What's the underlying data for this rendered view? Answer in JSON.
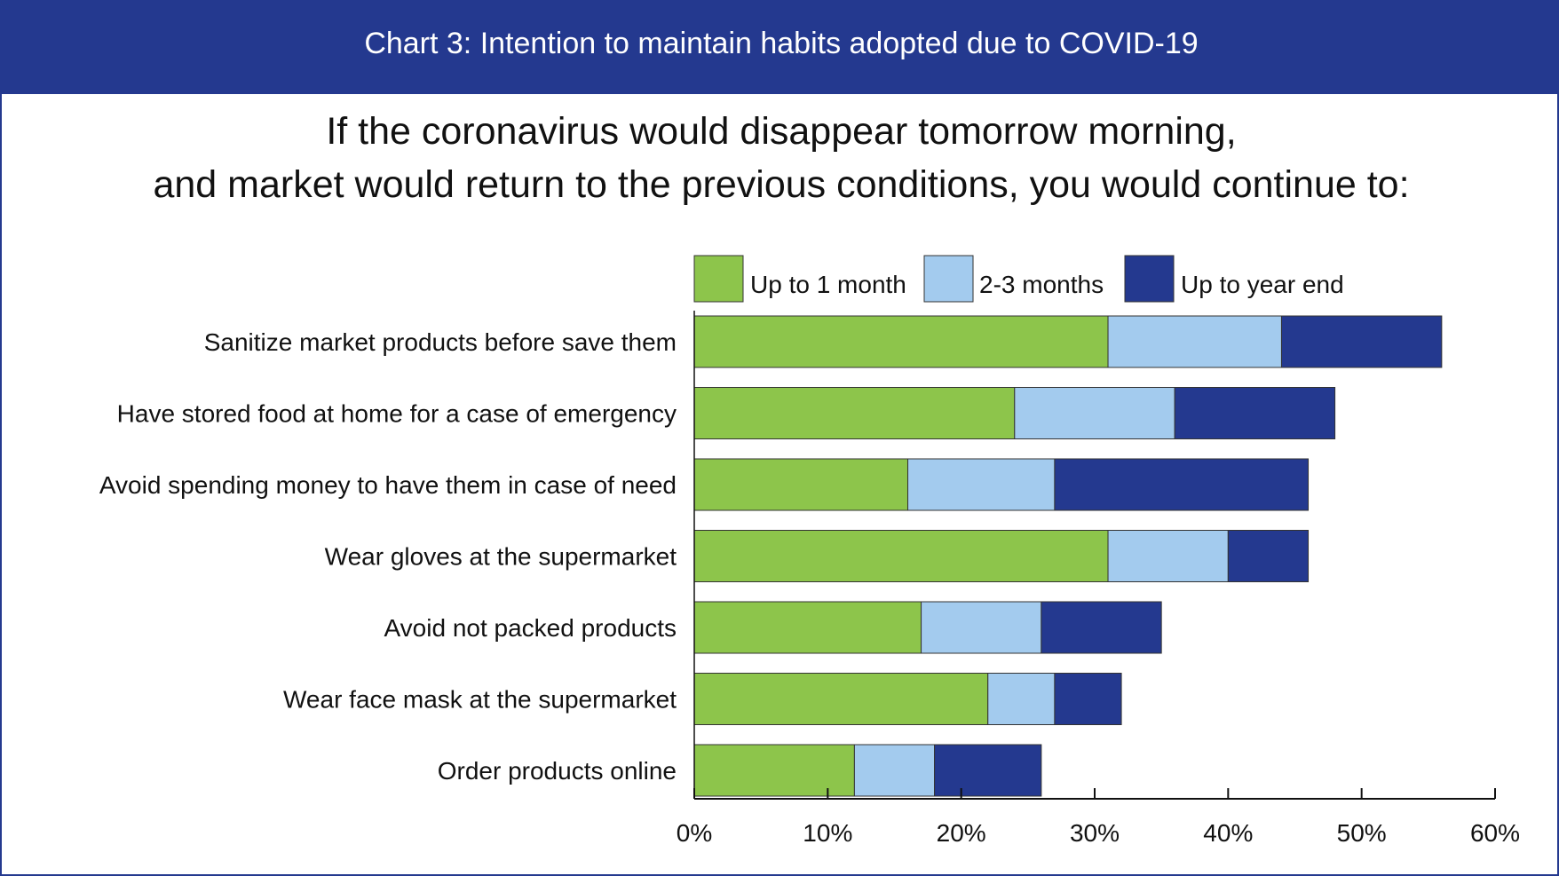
{
  "header": {
    "title": "Chart 3: Intention to maintain habits adopted due to COVID-19"
  },
  "question": {
    "line1": "If the coronavirus would disappear tomorrow morning,",
    "line2": "and market would return to the previous conditions, you would continue to:"
  },
  "chart_data": {
    "type": "bar",
    "orientation": "horizontal",
    "stacked": true,
    "categories": [
      "Sanitize market products before save them",
      "Have stored food at home for a case of emergency",
      "Avoid spending money to have them in case of need",
      "Wear gloves at the supermarket",
      "Avoid not packed products",
      "Wear face mask at the supermarket",
      "Order products online"
    ],
    "series": [
      {
        "name": "Up to 1 month",
        "color": "#8dc54b",
        "values": [
          31,
          24,
          16,
          31,
          17,
          22,
          12
        ]
      },
      {
        "name": "2-3 months",
        "color": "#a3cbee",
        "values": [
          13,
          12,
          11,
          9,
          9,
          5,
          6
        ]
      },
      {
        "name": "Up to year end",
        "color": "#24398f",
        "values": [
          12,
          12,
          19,
          6,
          9,
          5,
          8
        ]
      }
    ],
    "xlim": [
      0,
      60
    ],
    "xticks": [
      "0%",
      "10%",
      "20%",
      "30%",
      "40%",
      "50%",
      "60%"
    ],
    "tick_values": [
      0,
      10,
      20,
      30,
      40,
      50,
      60
    ],
    "legend_position": "top",
    "grid": false,
    "xlabel": "",
    "ylabel": ""
  }
}
